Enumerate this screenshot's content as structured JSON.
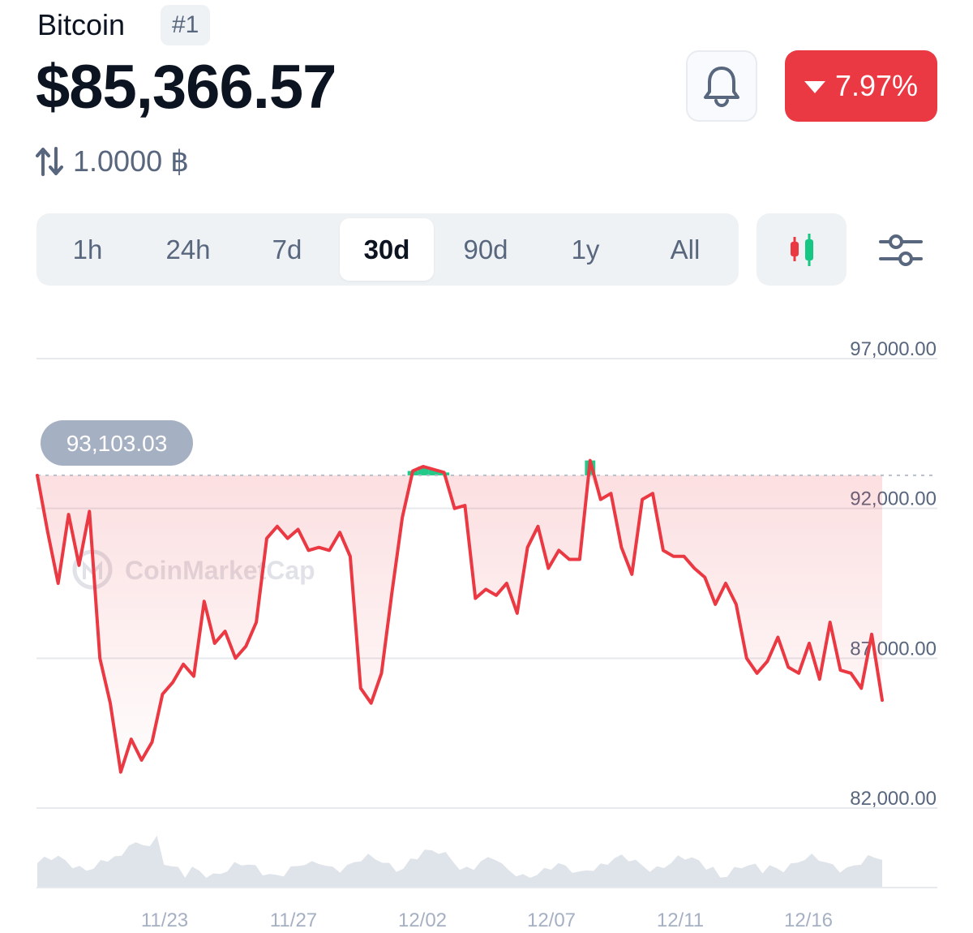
{
  "header": {
    "coin_name": "Bitcoin",
    "rank": "#1",
    "price": "$85,366.57",
    "change_pct": "7.97%",
    "change_direction": "down",
    "converter_value": "1.0000 ฿"
  },
  "range_tabs": [
    {
      "label": "1h",
      "active": false
    },
    {
      "label": "24h",
      "active": false
    },
    {
      "label": "7d",
      "active": false
    },
    {
      "label": "30d",
      "active": true
    },
    {
      "label": "90d",
      "active": false
    },
    {
      "label": "1y",
      "active": false
    },
    {
      "label": "All",
      "active": false
    }
  ],
  "icons": {
    "bell": "bell-icon",
    "change_arrow": "caret-down-icon",
    "converter": "swap-arrows-icon",
    "chart_type": "candlestick-icon",
    "settings": "sliders-icon"
  },
  "colors": {
    "accent_red": "#ea3943",
    "accent_green": "#16c784",
    "text_secondary": "#58667e",
    "tab_bg": "#eff2f5"
  },
  "chart_data": {
    "type": "line",
    "watermark": "CoinMarketCap",
    "ylim": [
      82000,
      97000
    ],
    "yticks": [
      97000,
      92000,
      87000,
      82000
    ],
    "ytick_labels": [
      "97,000.00",
      "92,000.00",
      "87,000.00",
      "82,000.00"
    ],
    "xtick_labels": [
      "11/23",
      "11/27",
      "12/02",
      "12/07",
      "12/11",
      "12/16"
    ],
    "reference_price": 93103.03,
    "reference_label": "93,103.03",
    "series": [
      {
        "x": [
          "11/19",
          "11/19",
          "11/20",
          "11/20",
          "11/20",
          "11/21",
          "11/21",
          "11/21",
          "11/22",
          "11/22",
          "11/22",
          "11/23",
          "11/23",
          "11/23",
          "11/24",
          "11/24",
          "11/24",
          "11/25",
          "11/25",
          "11/26",
          "11/26",
          "11/26",
          "11/27",
          "11/27",
          "11/28",
          "11/28",
          "11/28",
          "11/29",
          "11/29",
          "11/29",
          "11/30",
          "11/30",
          "12/01",
          "12/01",
          "12/01",
          "12/02",
          "12/02",
          "12/02",
          "12/03",
          "12/03",
          "12/03",
          "12/04",
          "12/04",
          "12/04",
          "12/05",
          "12/05",
          "12/05",
          "12/06",
          "12/06",
          "12/07",
          "12/07",
          "12/07",
          "12/08",
          "12/08",
          "12/08",
          "12/09",
          "12/09",
          "12/09",
          "12/10",
          "12/10",
          "12/10",
          "12/11",
          "12/11",
          "12/12",
          "12/12",
          "12/12",
          "12/13",
          "12/13",
          "12/13",
          "12/14",
          "12/14",
          "12/14",
          "12/15",
          "12/15",
          "12/15",
          "12/16",
          "12/16",
          "12/17",
          "12/17",
          "12/17",
          "12/18",
          "12/18"
        ],
        "values": [
          93100,
          91200,
          89500,
          91800,
          90100,
          91900,
          87000,
          85500,
          83200,
          84300,
          83600,
          84200,
          85800,
          86200,
          86800,
          86400,
          88900,
          87500,
          87900,
          87000,
          87400,
          88200,
          91000,
          91400,
          91000,
          91300,
          90600,
          90700,
          90600,
          91200,
          90400,
          86000,
          85500,
          86500,
          89200,
          91700,
          93250,
          93400,
          93300,
          93200,
          92000,
          92100,
          89000,
          89300,
          89100,
          89500,
          88500,
          90700,
          91400,
          90000,
          90600,
          90300,
          90300,
          93600,
          92300,
          92500,
          90700,
          89800,
          92300,
          92500,
          90600,
          90400,
          90400,
          90000,
          89700,
          88800,
          89500,
          88800,
          87000,
          86500,
          86900,
          87700,
          86700,
          86500,
          87500,
          86300,
          88200,
          86600,
          86500,
          86000,
          87800,
          85600
        ]
      }
    ],
    "volume_note": "volume histogram shown below price line"
  }
}
